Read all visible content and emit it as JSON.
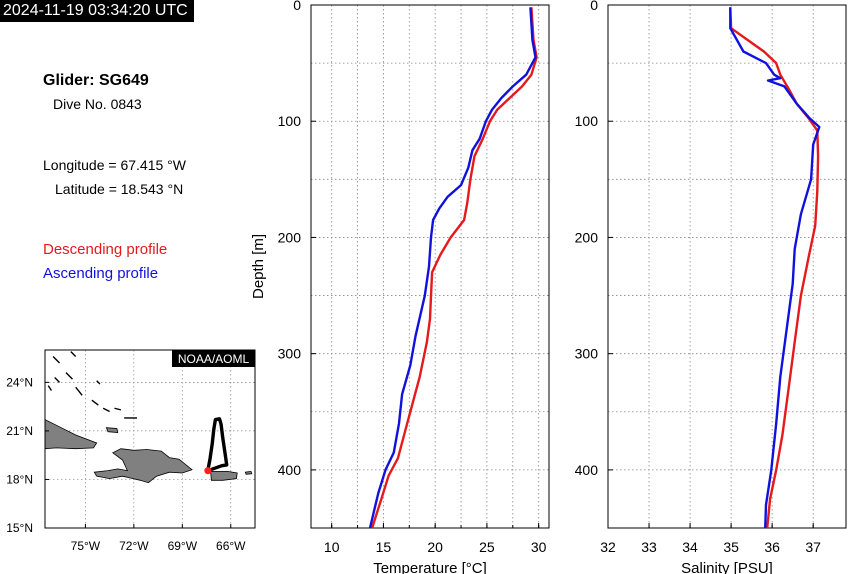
{
  "header": {
    "timestamp": "2024-11-19 03:34:20 UTC"
  },
  "info": {
    "glider_title": "Glider: SG649",
    "dive_number": "Dive No. 0843",
    "longitude": "Longitude = 67.415 °W",
    "latitude": "Latitude = 18.543 °N",
    "legend_descending": "Descending profile",
    "legend_ascending": "Ascending profile"
  },
  "colors": {
    "descending": "#e41a1c",
    "ascending": "#1111dd",
    "grid": "#888888",
    "land": "#808080",
    "track": "#000000",
    "glider_position": "#ff2020"
  },
  "map": {
    "credit": "NOAA/AOML",
    "x_ticks": [
      {
        "value": -75,
        "label": "75°W"
      },
      {
        "value": -72,
        "label": "72°W"
      },
      {
        "value": -69,
        "label": "69°W"
      },
      {
        "value": -66,
        "label": "66°W"
      }
    ],
    "y_ticks": [
      {
        "value": 15,
        "label": "15°N"
      },
      {
        "value": 18,
        "label": "18°N"
      },
      {
        "value": 21,
        "label": "21°N"
      },
      {
        "value": 24,
        "label": "24°N"
      }
    ],
    "lon_range": [
      -77.5,
      -64.5
    ],
    "lat_range": [
      15,
      26
    ],
    "glider_position": {
      "lon": -67.415,
      "lat": 18.543
    },
    "track": [
      [
        -67.42,
        18.54
      ],
      [
        -66.55,
        18.85
      ],
      [
        -66.25,
        18.9
      ],
      [
        -66.35,
        19.6
      ],
      [
        -66.5,
        20.6
      ],
      [
        -66.6,
        21.4
      ],
      [
        -66.7,
        21.75
      ],
      [
        -66.95,
        21.7
      ],
      [
        -67.05,
        21.1
      ],
      [
        -67.15,
        20.2
      ],
      [
        -67.28,
        19.3
      ],
      [
        -67.42,
        18.54
      ]
    ],
    "land": [
      {
        "name": "Hispaniola",
        "points": [
          [
            -74.45,
            18.45
          ],
          [
            -73.6,
            18.55
          ],
          [
            -73.0,
            18.65
          ],
          [
            -72.4,
            18.55
          ],
          [
            -72.7,
            19.2
          ],
          [
            -73.3,
            19.65
          ],
          [
            -72.8,
            19.9
          ],
          [
            -72.0,
            19.8
          ],
          [
            -71.2,
            19.85
          ],
          [
            -70.3,
            19.75
          ],
          [
            -69.8,
            19.35
          ],
          [
            -69.2,
            19.25
          ],
          [
            -68.4,
            18.6
          ],
          [
            -69.0,
            18.4
          ],
          [
            -69.8,
            18.45
          ],
          [
            -70.6,
            18.2
          ],
          [
            -71.1,
            17.8
          ],
          [
            -71.6,
            17.95
          ],
          [
            -72.7,
            18.2
          ],
          [
            -73.5,
            18.05
          ],
          [
            -74.3,
            18.2
          ]
        ]
      },
      {
        "name": "Puerto Rico",
        "points": [
          [
            -67.25,
            18.5
          ],
          [
            -66.2,
            18.5
          ],
          [
            -65.6,
            18.4
          ],
          [
            -65.65,
            18.05
          ],
          [
            -66.5,
            17.95
          ],
          [
            -67.2,
            17.95
          ]
        ]
      },
      {
        "name": "Cuba",
        "points": [
          [
            -77.5,
            21.7
          ],
          [
            -76.5,
            21.2
          ],
          [
            -75.6,
            20.75
          ],
          [
            -74.3,
            20.25
          ],
          [
            -74.5,
            19.95
          ],
          [
            -75.6,
            19.9
          ],
          [
            -76.8,
            19.95
          ],
          [
            -77.5,
            19.9
          ]
        ]
      },
      {
        "name": "Great Inagua",
        "points": [
          [
            -73.7,
            21.2
          ],
          [
            -73.05,
            21.15
          ],
          [
            -73.0,
            20.9
          ],
          [
            -73.6,
            20.95
          ]
        ]
      },
      {
        "name": "Virgin Islands",
        "points": [
          [
            -65.1,
            18.45
          ],
          [
            -64.75,
            18.5
          ],
          [
            -64.7,
            18.35
          ],
          [
            -65.05,
            18.32
          ]
        ]
      }
    ]
  },
  "chart_data": [
    {
      "type": "line",
      "title": "",
      "xlabel": "Temperature [°C]",
      "ylabel": "Depth [m]",
      "xlim": [
        8,
        31
      ],
      "ylim": [
        450,
        0
      ],
      "xticks": [
        10,
        15,
        20,
        25,
        30
      ],
      "yticks": [
        0,
        100,
        200,
        300,
        400
      ],
      "grid": true,
      "series": [
        {
          "name": "Descending profile",
          "points": [
            [
              29.3,
              2
            ],
            [
              29.5,
              30
            ],
            [
              29.8,
              45
            ],
            [
              29.3,
              60
            ],
            [
              28.4,
              70
            ],
            [
              27.2,
              80
            ],
            [
              26.0,
              90
            ],
            [
              25.3,
              100
            ],
            [
              24.6,
              115
            ],
            [
              23.8,
              130
            ],
            [
              23.4,
              150
            ],
            [
              23.1,
              170
            ],
            [
              22.8,
              185
            ],
            [
              21.5,
              200
            ],
            [
              20.5,
              215
            ],
            [
              19.7,
              230
            ],
            [
              19.6,
              250
            ],
            [
              19.5,
              270
            ],
            [
              19.2,
              290
            ],
            [
              18.5,
              320
            ],
            [
              17.6,
              350
            ],
            [
              17.0,
              370
            ],
            [
              16.4,
              390
            ],
            [
              15.5,
              405
            ],
            [
              14.8,
              425
            ],
            [
              13.9,
              450
            ]
          ]
        },
        {
          "name": "Ascending profile",
          "points": [
            [
              29.2,
              2
            ],
            [
              29.4,
              30
            ],
            [
              29.7,
              45
            ],
            [
              28.8,
              60
            ],
            [
              27.5,
              70
            ],
            [
              26.4,
              80
            ],
            [
              25.5,
              90
            ],
            [
              24.9,
              100
            ],
            [
              24.3,
              115
            ],
            [
              23.6,
              125
            ],
            [
              23.2,
              140
            ],
            [
              22.5,
              155
            ],
            [
              21.2,
              165
            ],
            [
              20.4,
              175
            ],
            [
              19.8,
              185
            ],
            [
              19.6,
              200
            ],
            [
              19.4,
              225
            ],
            [
              19.0,
              250
            ],
            [
              18.1,
              285
            ],
            [
              17.6,
              310
            ],
            [
              16.8,
              335
            ],
            [
              16.5,
              360
            ],
            [
              16.0,
              385
            ],
            [
              15.2,
              400
            ],
            [
              14.5,
              420
            ],
            [
              13.7,
              450
            ]
          ]
        }
      ]
    },
    {
      "type": "line",
      "title": "",
      "xlabel": "Salinity [PSU]",
      "ylabel": "",
      "xlim": [
        32,
        37.8
      ],
      "ylim": [
        450,
        0
      ],
      "xticks": [
        32,
        33,
        34,
        35,
        36,
        37
      ],
      "yticks": [
        0,
        100,
        200,
        300,
        400
      ],
      "grid": true,
      "series": [
        {
          "name": "Descending profile",
          "points": [
            [
              34.98,
              2
            ],
            [
              35.0,
              20
            ],
            [
              35.4,
              30
            ],
            [
              35.8,
              40
            ],
            [
              36.1,
              50
            ],
            [
              36.2,
              60
            ],
            [
              36.4,
              72
            ],
            [
              36.6,
              85
            ],
            [
              36.9,
              98
            ],
            [
              37.1,
              108
            ],
            [
              37.12,
              130
            ],
            [
              37.1,
              160
            ],
            [
              37.05,
              190
            ],
            [
              36.9,
              215
            ],
            [
              36.7,
              250
            ],
            [
              36.55,
              290
            ],
            [
              36.4,
              330
            ],
            [
              36.25,
              370
            ],
            [
              36.1,
              400
            ],
            [
              35.95,
              425
            ],
            [
              35.88,
              450
            ]
          ]
        },
        {
          "name": "Ascending profile",
          "points": [
            [
              34.98,
              2
            ],
            [
              34.98,
              20
            ],
            [
              35.3,
              40
            ],
            [
              35.85,
              50
            ],
            [
              36.05,
              60
            ],
            [
              36.2,
              63
            ],
            [
              35.9,
              65
            ],
            [
              36.3,
              70
            ],
            [
              36.6,
              85
            ],
            [
              36.9,
              97
            ],
            [
              37.15,
              105
            ],
            [
              37.0,
              120
            ],
            [
              36.95,
              150
            ],
            [
              36.7,
              180
            ],
            [
              36.55,
              210
            ],
            [
              36.5,
              240
            ],
            [
              36.35,
              280
            ],
            [
              36.2,
              320
            ],
            [
              36.1,
              360
            ],
            [
              35.98,
              400
            ],
            [
              35.85,
              430
            ],
            [
              35.83,
              450
            ]
          ]
        }
      ]
    }
  ]
}
